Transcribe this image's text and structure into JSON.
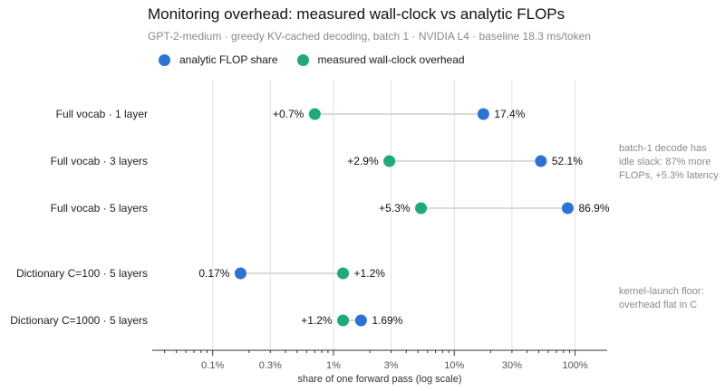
{
  "chart_data": {
    "type": "dot-plot",
    "title": "Monitoring overhead: measured wall-clock vs analytic FLOPs",
    "subtitle": "GPT-2-medium · greedy KV-cached decoding, batch 1 · NVIDIA L4 · baseline 18.3 ms/token",
    "xlabel": "share of one forward pass  (log scale)",
    "xscale": "log",
    "xlim": [
      0.03,
      200
    ],
    "xticks": [
      0.1,
      0.3,
      1,
      3,
      10,
      30,
      100
    ],
    "xtick_labels": [
      "0.1%",
      "0.3%",
      "1%",
      "3%",
      "10%",
      "30%",
      "100%"
    ],
    "grid": "vertical",
    "legend_position": "top-left",
    "colors": {
      "flop": "#2b74d6",
      "wall": "#1faa7d",
      "connector": "#dcdcd4",
      "grid": "#e2e2da"
    },
    "series": [
      {
        "key": "flop",
        "name": "analytic FLOP share"
      },
      {
        "key": "wall",
        "name": "measured wall-clock overhead"
      }
    ],
    "rows": [
      {
        "label": "Full vocab · 1 layer",
        "flop": 17.4,
        "flop_label": "17.4%",
        "wall": 0.7,
        "wall_label": "+0.7%"
      },
      {
        "label": "Full vocab · 3 layers",
        "flop": 52.1,
        "flop_label": "52.1%",
        "wall": 2.9,
        "wall_label": "+2.9%"
      },
      {
        "label": "Full vocab · 5 layers",
        "flop": 86.9,
        "flop_label": "86.9%",
        "wall": 5.3,
        "wall_label": "+5.3%"
      },
      {
        "label": "Dictionary C=100 · 5 layers",
        "flop": 0.17,
        "flop_label": "0.17%",
        "wall": 1.2,
        "wall_label": "+1.2%"
      },
      {
        "label": "Dictionary C=1000 · 5 layers",
        "flop": 1.69,
        "flop_label": "1.69%",
        "wall": 1.2,
        "wall_label": "+1.2%"
      }
    ],
    "annotations": [
      {
        "lines": [
          "batch-1 decode has",
          "idle slack: 87% more",
          "FLOPs, +5.3% latency"
        ]
      },
      {
        "lines": [
          "kernel-launch floor:",
          "overhead flat in C"
        ]
      }
    ]
  }
}
